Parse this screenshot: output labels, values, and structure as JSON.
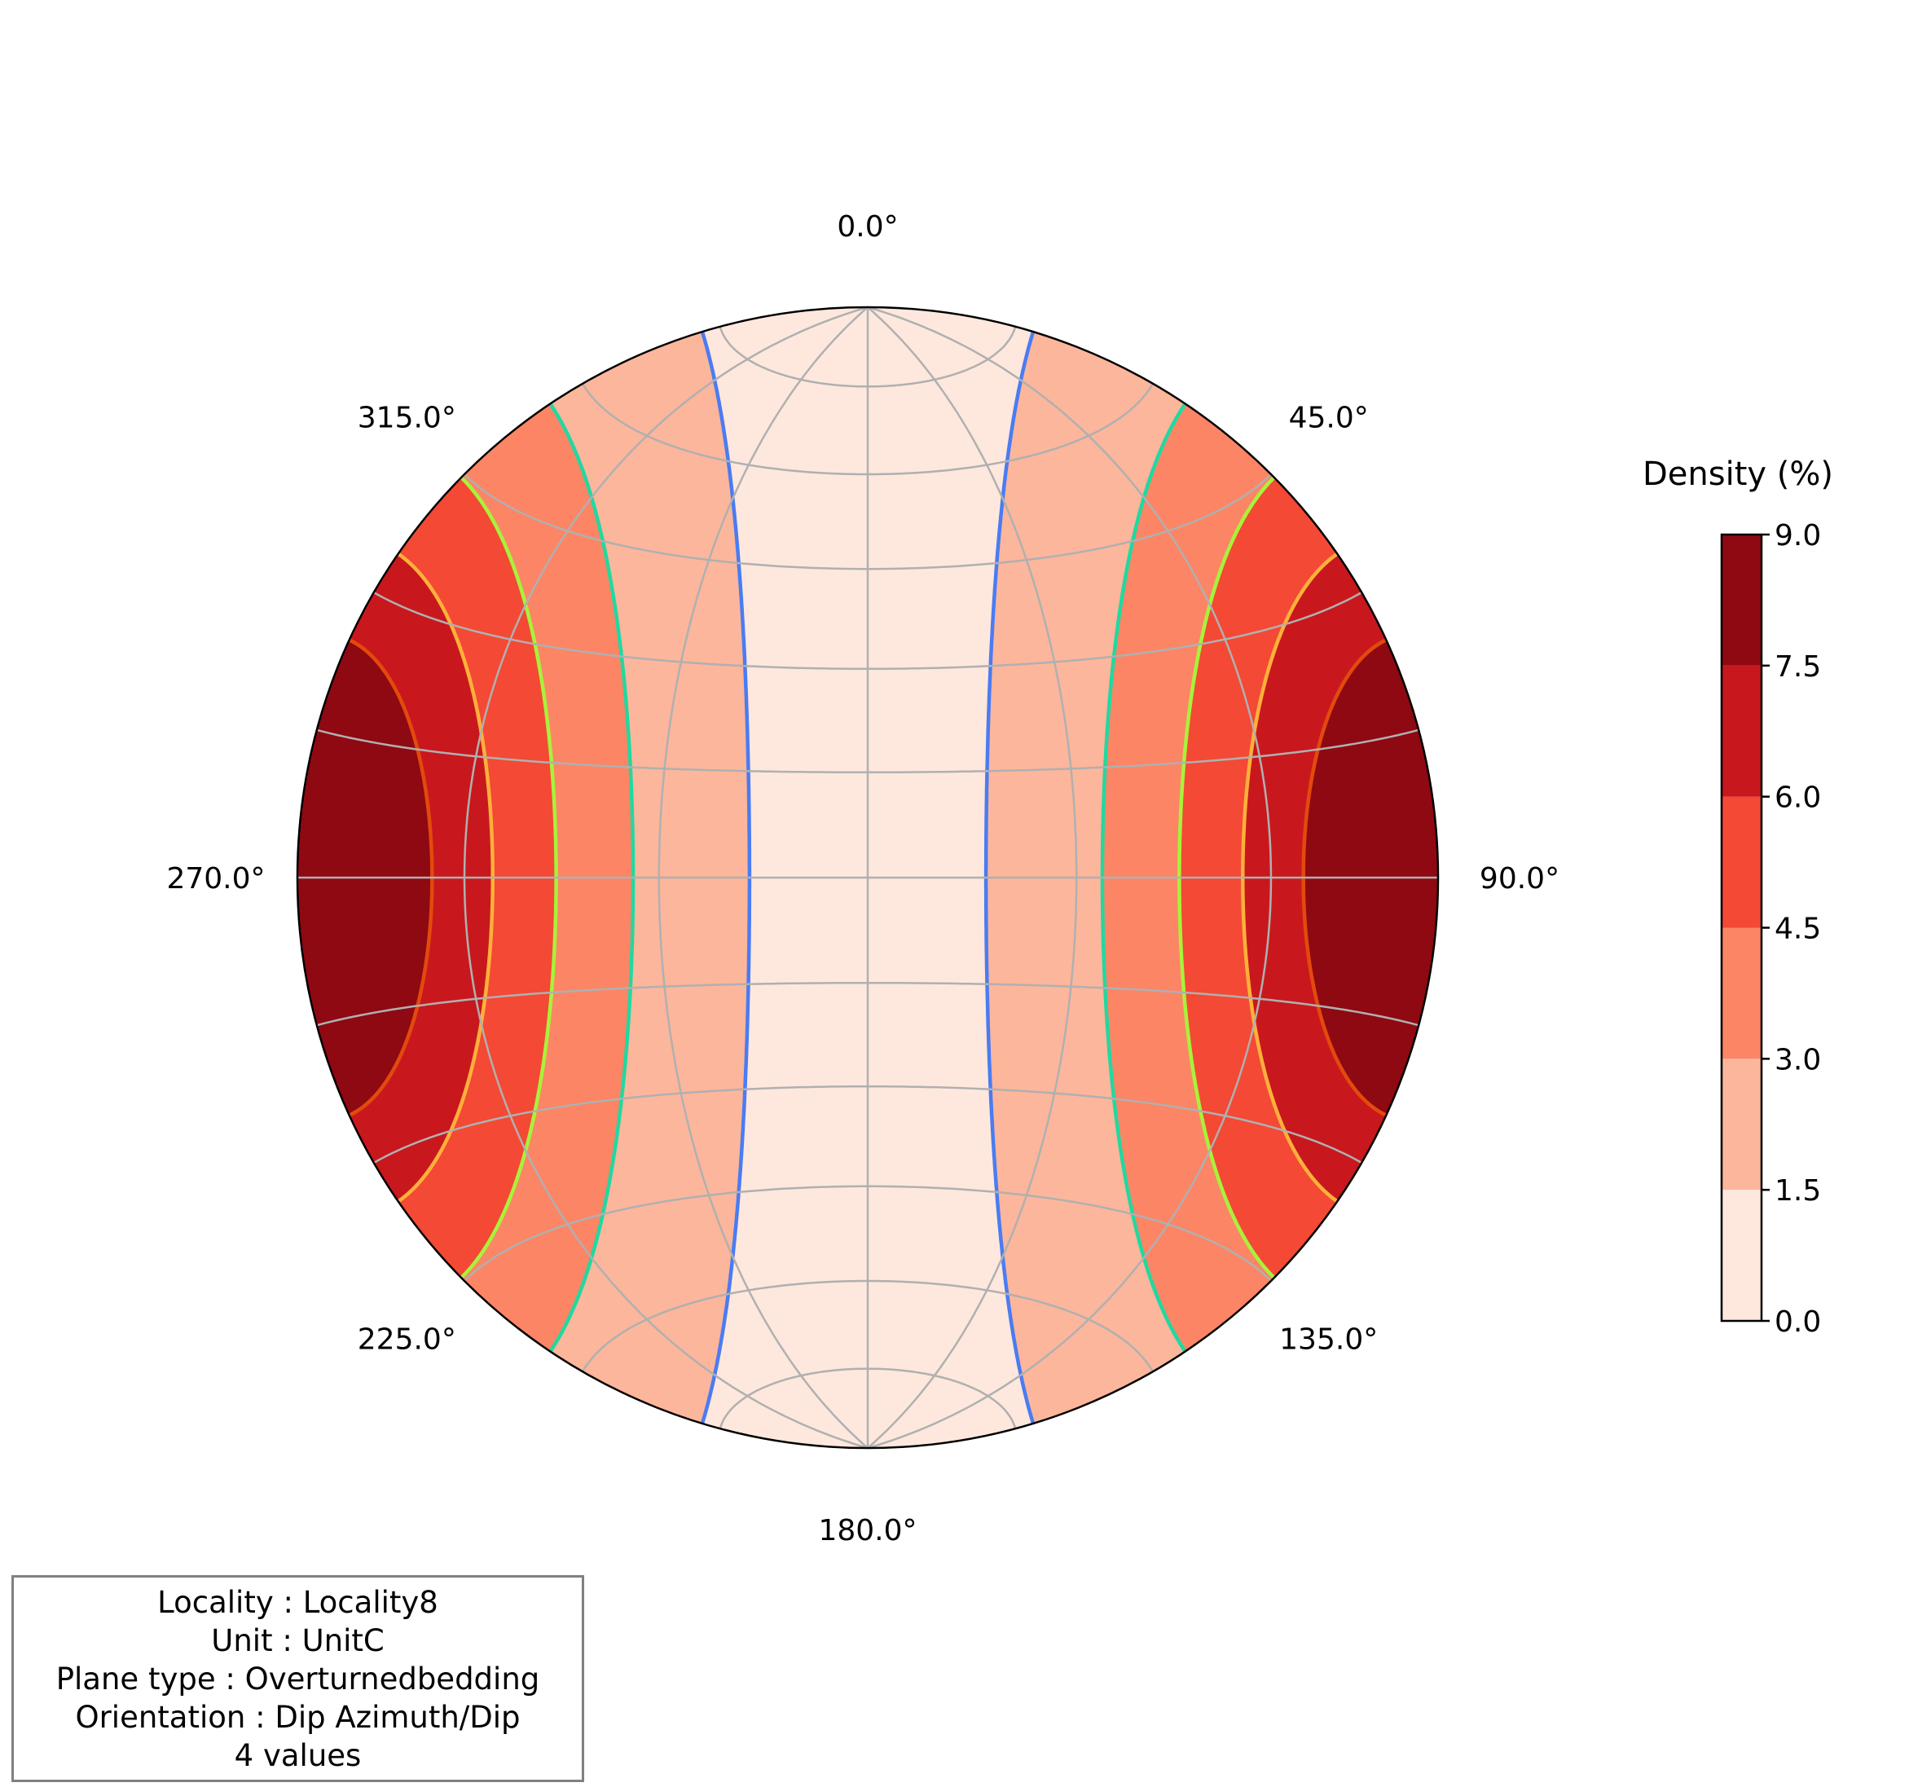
{
  "chart_data": {
    "type": "stereonet-density",
    "projection": "equal-area, lower hemisphere",
    "azimuth_labels": [
      "0.0°",
      "45.0°",
      "90.0°",
      "135.0°",
      "180.0°",
      "225.0°",
      "270.0°",
      "315.0°"
    ],
    "density_levels": [
      0.0,
      1.5,
      3.0,
      4.5,
      6.0,
      7.5,
      9.0
    ],
    "fill_colors": [
      "#fee8dd",
      "#fcb69b",
      "#fc8565",
      "#f34935",
      "#c8181d",
      "#8e0912"
    ],
    "contour_line_colors": [
      "#4a7cf2",
      "#22d8a0",
      "#a8f23a",
      "#ffb03a",
      "#e34a0c"
    ],
    "grid": true,
    "poles": [
      {
        "dip_azimuth": 270,
        "dip": 90
      },
      {
        "dip_azimuth": 270,
        "dip": 90
      },
      {
        "dip_azimuth": 90,
        "dip": 90
      },
      {
        "dip_azimuth": 90,
        "dip": 90
      }
    ],
    "colorbar": {
      "title": "Density (%)",
      "ticks": [
        "0.0",
        "1.5",
        "3.0",
        "4.5",
        "6.0",
        "7.5",
        "9.0"
      ],
      "range": [
        0,
        9
      ]
    }
  },
  "info_box": {
    "lines": [
      "Locality : Locality8",
      "Unit : UnitC",
      "Plane type : Overturnedbedding",
      "Orientation : Dip Azimuth/Dip",
      "4 values"
    ]
  }
}
